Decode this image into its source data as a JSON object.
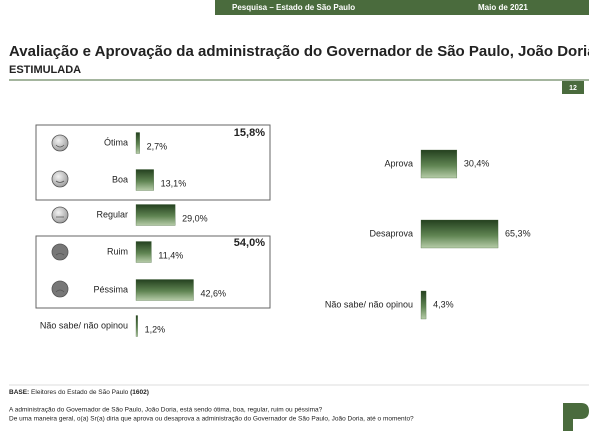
{
  "header": {
    "left": "Pesquisa – Estado de São Paulo",
    "right": "Maio de 2021"
  },
  "title": "Avaliação e Aprovação da administração do Governador de São Paulo, João Doria",
  "subtitle": "ESTIMULADA",
  "page_number": "12",
  "base": {
    "label": "BASE:",
    "text": "Eleitores do Estado de São Paulo",
    "n": "(1602)"
  },
  "questions": [
    "A administração do Governador de São Paulo, João Doria, está sendo ótima, boa, regular, ruim ou péssima?",
    "De uma maneira geral, o(a) Sr(a) diria que aprova ou desaprova a administração do Governador de São Paulo, João Doria, até o momento?"
  ],
  "chart_data": [
    {
      "type": "bar",
      "orientation": "horizontal",
      "categories": [
        "Ótima",
        "Boa",
        "Regular",
        "Ruim",
        "Péssima",
        "Não sabe/ não opinou"
      ],
      "values": [
        2.7,
        13.1,
        29.0,
        11.4,
        42.6,
        1.2
      ],
      "value_labels": [
        "2,7%",
        "13,1%",
        "29,0%",
        "11,4%",
        "42,6%",
        "1,2%"
      ],
      "color": "#3d5e35",
      "annotations": [
        "15,8%",
        "54,0%"
      ]
    },
    {
      "type": "bar",
      "orientation": "horizontal",
      "categories": [
        "Aprova",
        "Desaprova",
        "Não sabe/ não opinou"
      ],
      "values": [
        30.4,
        65.3,
        4.3
      ],
      "value_labels": [
        "30,4%",
        "65,3%",
        "4,3%"
      ],
      "color": "#3d5e35"
    }
  ]
}
